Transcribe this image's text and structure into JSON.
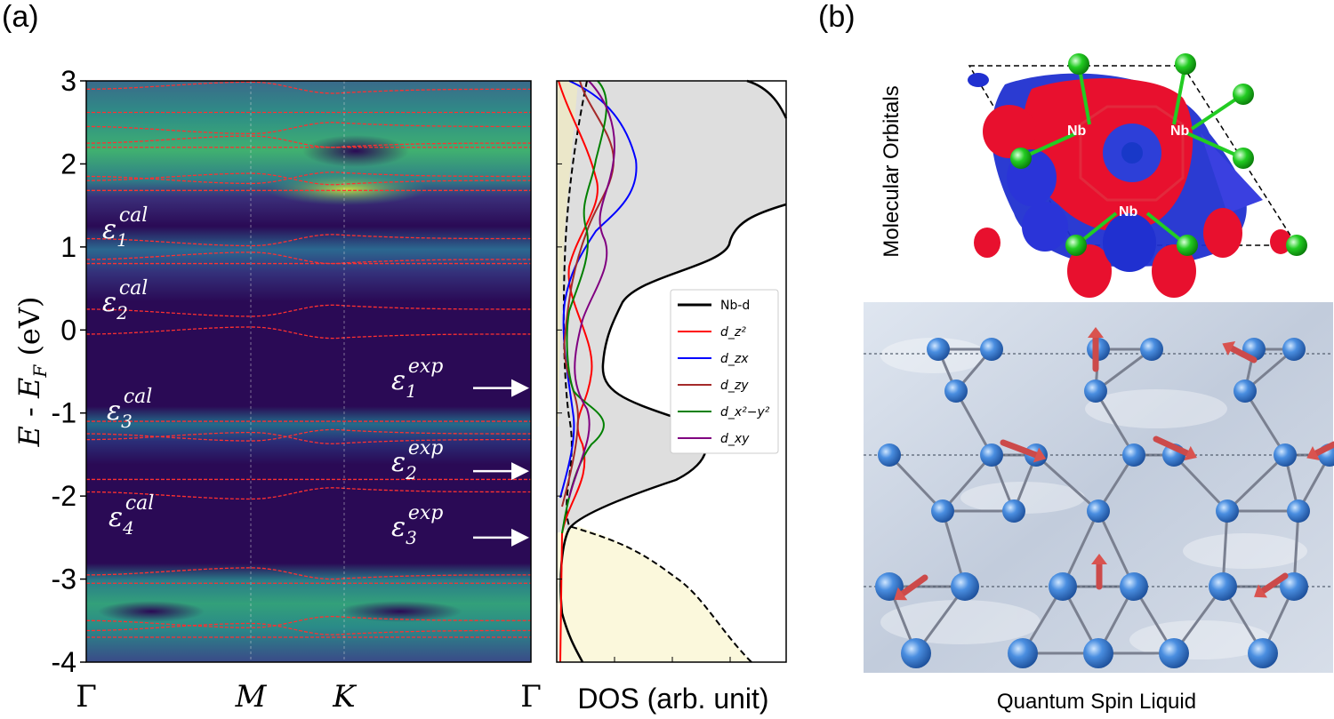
{
  "figure": {
    "panel_a_label": "(a)",
    "panel_b_label": "(b)",
    "axis_ylabel": "E - E_F (eV)",
    "y_ticks": [
      "3",
      "2",
      "1",
      "0",
      "-1",
      "-2",
      "-3",
      "-4"
    ],
    "k_labels": [
      "Γ",
      "M",
      "K",
      "Γ"
    ],
    "dos_xlabel": "DOS (arb. unit)",
    "calc_levels": [
      {
        "label": "ε",
        "sub": "1",
        "sup": "cal"
      },
      {
        "label": "ε",
        "sub": "2",
        "sup": "cal"
      },
      {
        "label": "ε",
        "sub": "3",
        "sup": "cal"
      },
      {
        "label": "ε",
        "sub": "4",
        "sup": "cal"
      }
    ],
    "exp_levels": [
      {
        "label": "ε",
        "sub": "1",
        "sup": "exp",
        "energy": -0.7
      },
      {
        "label": "ε",
        "sub": "2",
        "sup": "exp",
        "energy": -1.7
      },
      {
        "label": "ε",
        "sub": "3",
        "sup": "exp",
        "energy": -2.5
      }
    ],
    "legend": [
      {
        "name": "Nb-d",
        "color": "#000000"
      },
      {
        "name": "d_z²",
        "color": "#ff0000"
      },
      {
        "name": "d_zx",
        "color": "#0000ff"
      },
      {
        "name": "d_zy",
        "color": "#a52a2a"
      },
      {
        "name": "d_x²−y²",
        "color": "#008000"
      },
      {
        "name": "d_xy",
        "color": "#800080"
      }
    ],
    "mo_title": "Molecular Orbitals",
    "nb_labels": [
      "Nb",
      "Nb",
      "Nb"
    ],
    "qsl_caption": "Quantum Spin Liquid"
  },
  "chart_data": {
    "type": "line",
    "title": "",
    "ylabel": "E - E_F (eV)",
    "ylim": [
      -4,
      3
    ],
    "xlabel": "",
    "k_path": [
      "Γ",
      "M",
      "K",
      "Γ"
    ],
    "bands_approx_energy_eV": [
      2.9,
      2.62,
      2.45,
      2.25,
      2.2,
      1.85,
      1.8,
      1.68,
      1.1,
      0.85,
      0.8,
      0.25,
      -0.05,
      -1.1,
      -1.25,
      -1.32,
      -1.8,
      -1.95,
      -2.95,
      -3.05,
      -3.5,
      -3.62,
      -3.7
    ],
    "exp_levels_eV": [
      -0.7,
      -1.7,
      -2.5
    ],
    "dos_xlabel": "DOS (arb. unit)",
    "dos_series": [
      "Nb-d",
      "d_z²",
      "d_zx",
      "d_zy",
      "d_x²−y²",
      "d_xy"
    ]
  }
}
